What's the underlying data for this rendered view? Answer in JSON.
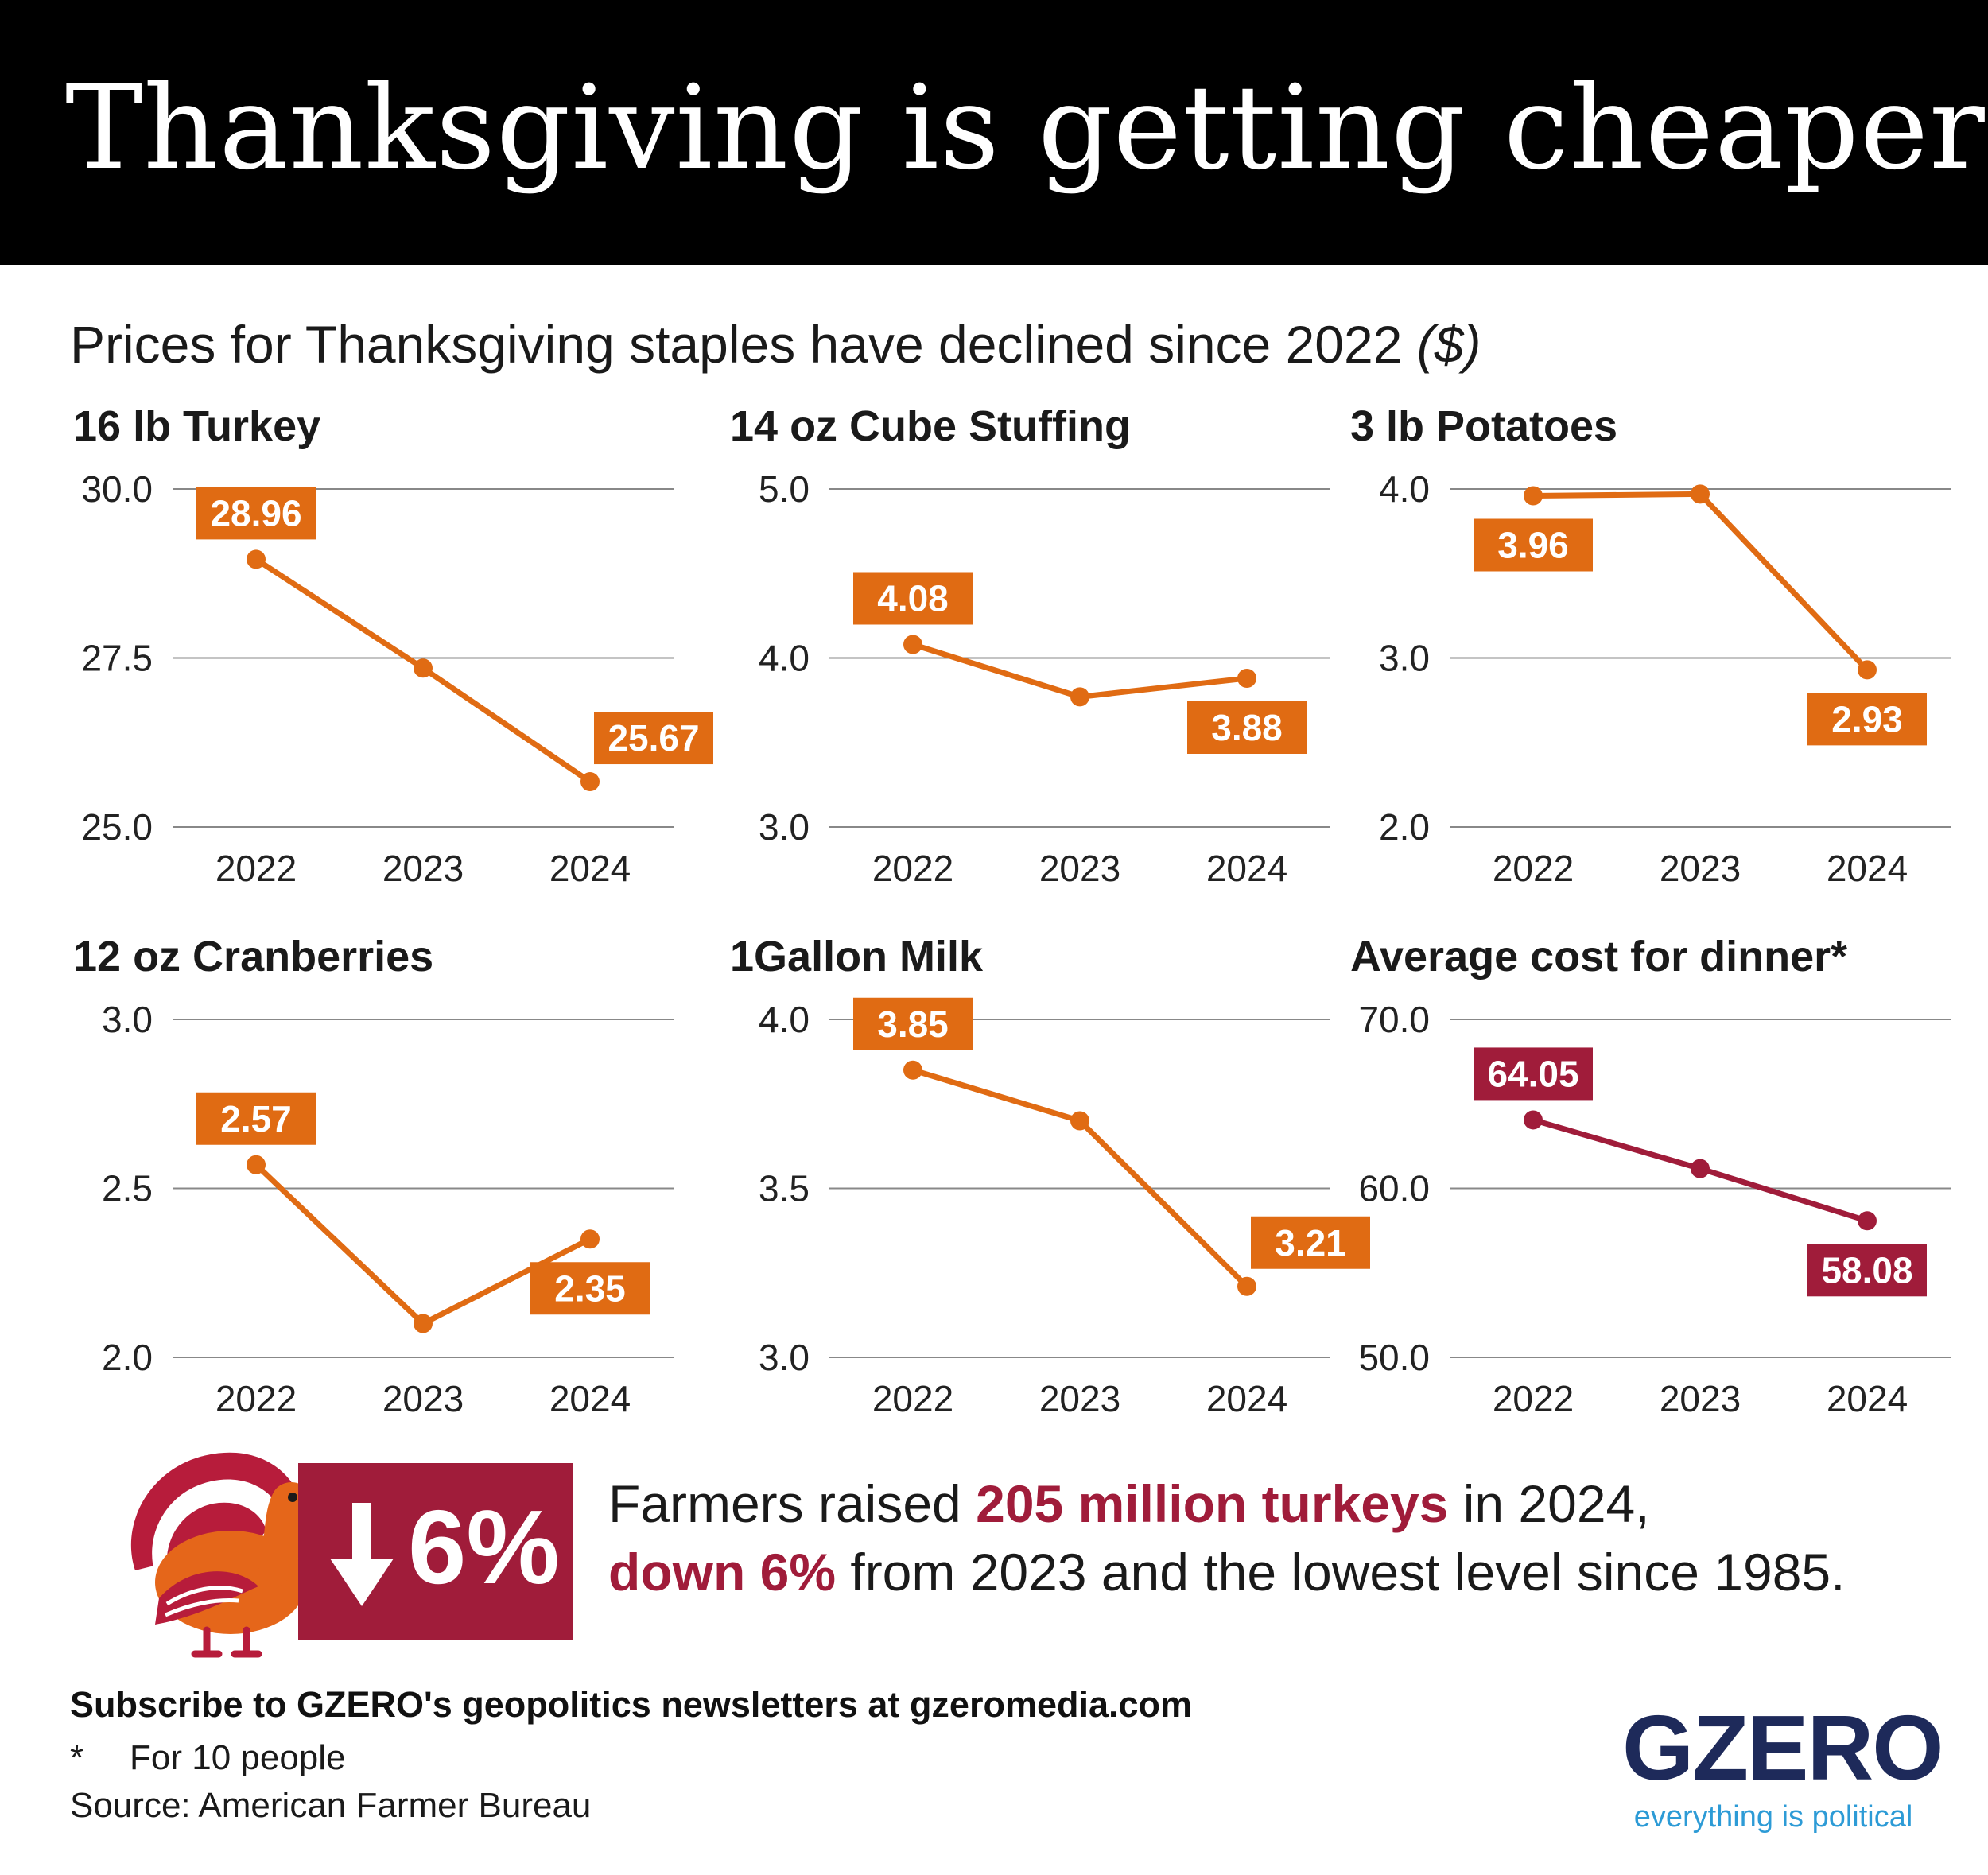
{
  "title": "Thanksgiving is getting cheaper",
  "subtitle": {
    "text": "Prices for Thanksgiving staples have declined since 2022",
    "unit": "($)"
  },
  "colors": {
    "header_bg": "#000000",
    "accent_orange": "#e06b13",
    "accent_crimson": "#a01c3a",
    "grid": "#888888",
    "logo_navy": "#1e2a5a",
    "logo_blue": "#2d9bd6"
  },
  "chart_data": [
    {
      "type": "line",
      "title": "16 lb Turkey",
      "categories": [
        "2022",
        "2023",
        "2024"
      ],
      "values": [
        28.96,
        27.35,
        25.67
      ],
      "labels": [
        "28.96",
        "",
        "25.67"
      ],
      "yticks": [
        "30.0",
        "27.5",
        "25.0"
      ],
      "ylim": [
        25.0,
        30.0
      ],
      "color": "#e06b13",
      "grid": true
    },
    {
      "type": "line",
      "title": "14 oz Cube Stuffing",
      "categories": [
        "2022",
        "2023",
        "2024"
      ],
      "values": [
        4.08,
        3.77,
        3.88
      ],
      "labels": [
        "4.08",
        "",
        "3.88"
      ],
      "yticks": [
        "5.0",
        "4.0",
        "3.0"
      ],
      "ylim": [
        3.0,
        5.0
      ],
      "color": "#e06b13",
      "grid": true
    },
    {
      "type": "line",
      "title": "3 lb Potatoes",
      "categories": [
        "2022",
        "2023",
        "2024"
      ],
      "values": [
        3.96,
        3.97,
        2.93
      ],
      "labels": [
        "3.96",
        "",
        "2.93"
      ],
      "yticks": [
        "4.0",
        "3.0",
        "2.0"
      ],
      "ylim": [
        2.0,
        4.0
      ],
      "color": "#e06b13",
      "grid": true
    },
    {
      "type": "line",
      "title": "12 oz Cranberries",
      "categories": [
        "2022",
        "2023",
        "2024"
      ],
      "values": [
        2.57,
        2.1,
        2.35
      ],
      "labels": [
        "2.57",
        "",
        "2.35"
      ],
      "yticks": [
        "3.0",
        "2.5",
        "2.0"
      ],
      "ylim": [
        2.0,
        3.0
      ],
      "color": "#e06b13",
      "grid": true
    },
    {
      "type": "line",
      "title": "1Gallon Milk",
      "categories": [
        "2022",
        "2023",
        "2024"
      ],
      "values": [
        3.85,
        3.7,
        3.21
      ],
      "labels": [
        "3.85",
        "",
        "3.21"
      ],
      "yticks": [
        "4.0",
        "3.5",
        "3.0"
      ],
      "ylim": [
        3.0,
        4.0
      ],
      "color": "#e06b13",
      "grid": true
    },
    {
      "type": "line",
      "title": "Average cost for dinner*",
      "categories": [
        "2022",
        "2023",
        "2024"
      ],
      "values": [
        64.05,
        61.17,
        58.08
      ],
      "labels": [
        "64.05",
        "",
        "58.08"
      ],
      "yticks": [
        "70.0",
        "60.0",
        "50.0"
      ],
      "ylim": [
        50.0,
        70.0
      ],
      "color": "#a01c3a",
      "grid": true
    }
  ],
  "callout": {
    "badge": "6%",
    "line1_pre": "Farmers raised ",
    "line1_hl": "205 million turkeys",
    "line1_post": " in 2024,",
    "line2_hl": "down 6%",
    "line2_post": " from 2023 and the lowest level since 1985."
  },
  "footer": {
    "subscribe": "Subscribe to GZERO's geopolitics newsletters at gzeromedia.com",
    "footnote_mark": "*",
    "footnote_text": "For 10 people",
    "source": "Source: American Farmer Bureau"
  },
  "logo": {
    "word": "GZERO",
    "tagline": "everything is political"
  },
  "icons": [
    "turkey-icon",
    "down-arrow-icon"
  ]
}
